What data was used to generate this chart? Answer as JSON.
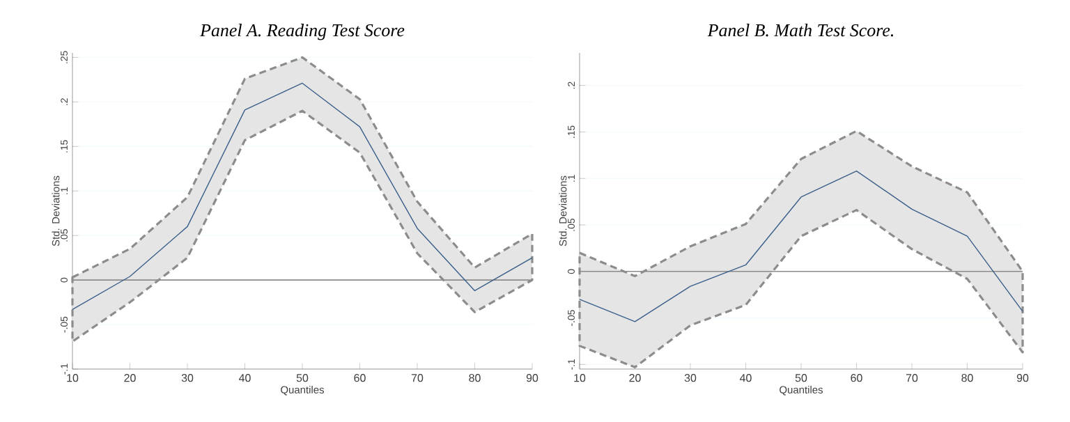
{
  "chart_data": [
    {
      "type": "line",
      "title": "Panel A. Reading Test Score",
      "xlabel": "Quantiles",
      "ylabel": "Std. Deviations",
      "x": [
        10,
        20,
        30,
        40,
        50,
        60,
        70,
        80,
        90
      ],
      "series": [
        {
          "color": "#3a5f8a",
          "values": [
            -0.033,
            0.004,
            0.06,
            0.191,
            0.221,
            0.172,
            0.058,
            -0.012,
            0.025
          ],
          "lower": [
            -0.069,
            -0.025,
            0.025,
            0.157,
            0.19,
            0.143,
            0.03,
            -0.036,
            0.0
          ],
          "upper": [
            0.003,
            0.035,
            0.093,
            0.226,
            0.25,
            0.203,
            0.088,
            0.014,
            0.052
          ]
        }
      ],
      "xlim": [
        10,
        90
      ],
      "ylim": [
        -0.1,
        0.255
      ],
      "xticks": [
        10,
        20,
        30,
        40,
        50,
        60,
        70,
        80,
        90
      ],
      "yticks": [
        {
          "value": -0.1,
          "label": "-.1"
        },
        {
          "value": -0.05,
          "label": "-.05"
        },
        0,
        {
          "value": 0.05,
          "label": ".05"
        },
        {
          "value": 0.1,
          "label": ".1"
        },
        {
          "value": 0.15,
          "label": ".15"
        },
        {
          "value": 0.2,
          "label": ".2"
        },
        {
          "value": 0.25,
          "label": ".25"
        }
      ],
      "ref_lines": [
        {
          "axis": "y",
          "value": 0,
          "color": "#8c8c8c"
        }
      ],
      "grid": "y"
    },
    {
      "type": "line",
      "title": "Panel B. Math Test Score.",
      "xlabel": "Quantiles",
      "ylabel": "Std. Deviations",
      "x": [
        10,
        20,
        30,
        40,
        50,
        60,
        70,
        80,
        90
      ],
      "series": [
        {
          "color": "#3a5f8a",
          "values": [
            -0.03,
            -0.054,
            -0.016,
            0.007,
            0.08,
            0.108,
            0.067,
            0.038,
            -0.043
          ],
          "lower": [
            -0.08,
            -0.103,
            -0.058,
            -0.036,
            0.038,
            0.066,
            0.024,
            -0.008,
            -0.087
          ],
          "upper": [
            0.02,
            -0.005,
            0.027,
            0.051,
            0.121,
            0.151,
            0.113,
            0.085,
            0.0
          ]
        }
      ],
      "xlim": [
        10,
        90
      ],
      "ylim": [
        -0.105,
        0.235
      ],
      "xticks": [
        10,
        20,
        30,
        40,
        50,
        60,
        70,
        80,
        90
      ],
      "yticks": [
        {
          "value": -0.1,
          "label": "-.1"
        },
        {
          "value": -0.05,
          "label": "-.05"
        },
        0,
        {
          "value": 0.05,
          "label": ".05"
        },
        {
          "value": 0.1,
          "label": ".1"
        },
        {
          "value": 0.15,
          "label": ".15"
        },
        {
          "value": 0.2,
          "label": ".2"
        }
      ],
      "ref_lines": [
        {
          "axis": "y",
          "value": 0,
          "color": "#8c8c8c"
        }
      ],
      "grid": "y"
    }
  ]
}
